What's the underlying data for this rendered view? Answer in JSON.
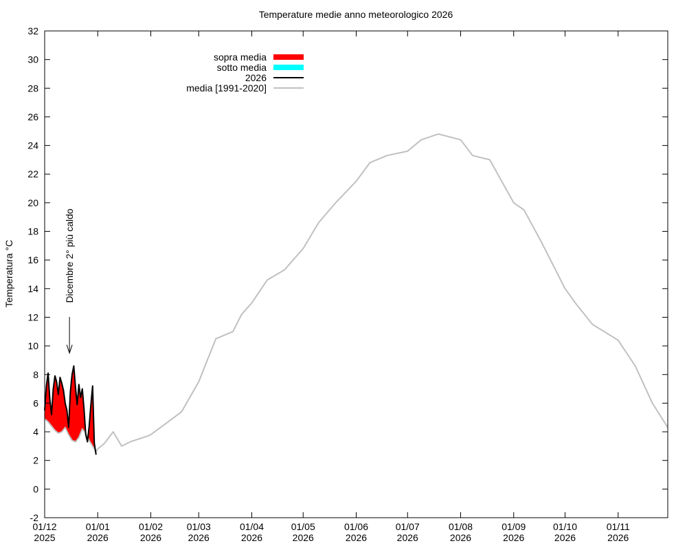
{
  "chart_data": {
    "type": "area",
    "title": "Temperature medie anno meteorologico 2026",
    "ylabel": "Temperatura °C",
    "xlabel": "",
    "ylim": [
      -2,
      32
    ],
    "y_ticks": [
      -2,
      0,
      2,
      4,
      6,
      8,
      10,
      12,
      14,
      16,
      18,
      20,
      22,
      24,
      26,
      28,
      30,
      32
    ],
    "x_range_days": [
      0,
      364
    ],
    "grid": false,
    "legend_position": "top-left",
    "x_ticks": [
      {
        "day": 0,
        "line1": "01/12",
        "line2": "2025"
      },
      {
        "day": 31,
        "line1": "01/01",
        "line2": "2026"
      },
      {
        "day": 62,
        "line1": "01/02",
        "line2": "2026"
      },
      {
        "day": 90,
        "line1": "01/03",
        "line2": "2026"
      },
      {
        "day": 121,
        "line1": "01/04",
        "line2": "2026"
      },
      {
        "day": 151,
        "line1": "01/05",
        "line2": "2026"
      },
      {
        "day": 182,
        "line1": "01/06",
        "line2": "2026"
      },
      {
        "day": 212,
        "line1": "01/07",
        "line2": "2026"
      },
      {
        "day": 243,
        "line1": "01/08",
        "line2": "2026"
      },
      {
        "day": 274,
        "line1": "01/09",
        "line2": "2026"
      },
      {
        "day": 304,
        "line1": "01/10",
        "line2": "2026"
      },
      {
        "day": 335,
        "line1": "01/11",
        "line2": "2026"
      }
    ],
    "legend": [
      {
        "label": "sopra media",
        "style": "fill",
        "color": "#ff0000"
      },
      {
        "label": "sotto media",
        "style": "fill",
        "color": "#00ffff"
      },
      {
        "label": "2026",
        "style": "line",
        "color": "#000000"
      },
      {
        "label": "media [1991-2020]",
        "style": "line",
        "color": "#c0c0c0"
      }
    ],
    "annotation": {
      "text": "Dicembre 2° più caldo",
      "day": 14.5,
      "arrow_tip_y": 9.5
    },
    "colors": {
      "above": "#ff0000",
      "below": "#00ffff",
      "current": "#000000",
      "normal": "#c0c0c0"
    },
    "series": [
      {
        "name": "media [1991-2020]",
        "x": [
          0,
          2,
          4,
          6,
          8,
          10,
          12,
          14,
          16,
          18,
          20,
          22,
          24,
          26,
          28,
          30,
          31,
          35,
          40,
          45,
          50,
          55,
          60,
          62,
          70,
          80,
          90,
          100,
          110,
          115,
          121,
          130,
          140,
          151,
          160,
          170,
          182,
          190,
          200,
          212,
          220,
          230,
          243,
          250,
          260,
          274,
          280,
          290,
          304,
          310,
          320,
          335,
          345,
          355,
          364
        ],
        "y": [
          4.9,
          4.7,
          4.4,
          4.1,
          3.9,
          4.0,
          4.3,
          3.8,
          3.4,
          3.3,
          3.6,
          4.2,
          3.9,
          3.4,
          3.0,
          2.6,
          2.8,
          3.2,
          4.0,
          3.0,
          3.3,
          3.5,
          3.7,
          3.8,
          4.5,
          5.4,
          7.5,
          10.5,
          11.0,
          12.2,
          13.0,
          14.6,
          15.3,
          16.8,
          18.6,
          20.0,
          21.5,
          22.8,
          23.3,
          23.6,
          24.4,
          24.8,
          24.4,
          23.3,
          23.0,
          20.0,
          19.5,
          17.3,
          14.0,
          13.0,
          11.5,
          10.4,
          8.6,
          6.0,
          4.3
        ]
      },
      {
        "name": "2026",
        "x": [
          0,
          1,
          2,
          3,
          4,
          5,
          6,
          7,
          8,
          9,
          10,
          11,
          12,
          13,
          14,
          15,
          16,
          17,
          18,
          19,
          20,
          21,
          22,
          23,
          24,
          25,
          26,
          27,
          28,
          29,
          30
        ],
        "y": [
          5.5,
          7.2,
          8.1,
          6.3,
          5.2,
          7.0,
          7.9,
          7.5,
          6.6,
          7.8,
          7.4,
          6.9,
          6.0,
          5.5,
          4.3,
          6.8,
          8.0,
          8.6,
          7.1,
          5.9,
          7.3,
          6.4,
          7.0,
          5.6,
          3.8,
          3.3,
          4.4,
          5.9,
          7.2,
          3.2,
          2.4
        ]
      }
    ]
  }
}
